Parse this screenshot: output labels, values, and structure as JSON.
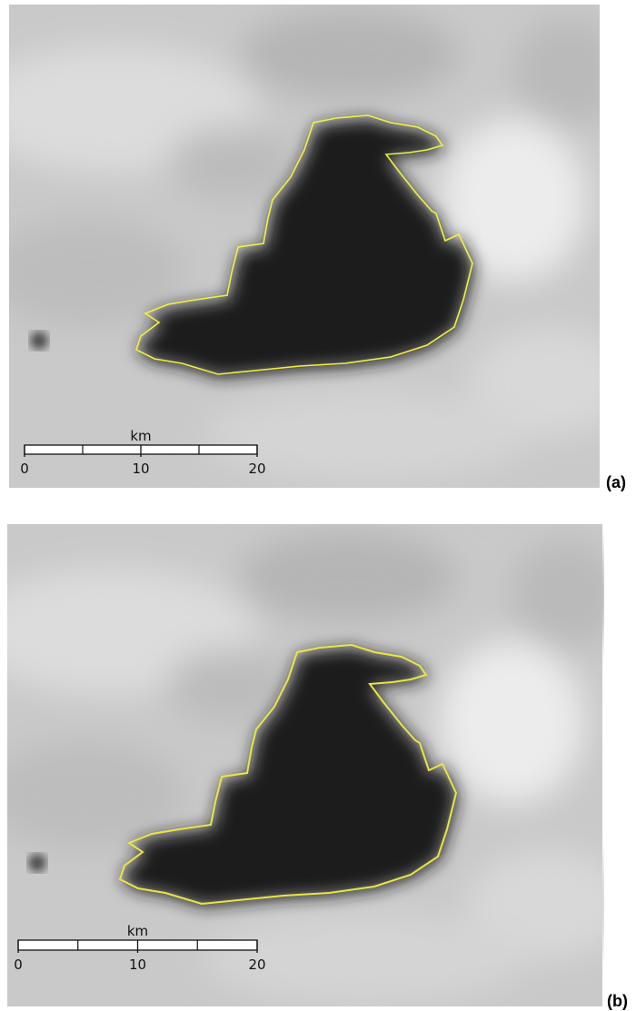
{
  "panels": [
    {
      "label": "(a)",
      "scale": {
        "unit": "km",
        "ticks": [
          0,
          10,
          20
        ]
      }
    },
    {
      "label": "(b)",
      "scale": {
        "unit": "km",
        "ticks": [
          0,
          10,
          20
        ]
      }
    }
  ]
}
